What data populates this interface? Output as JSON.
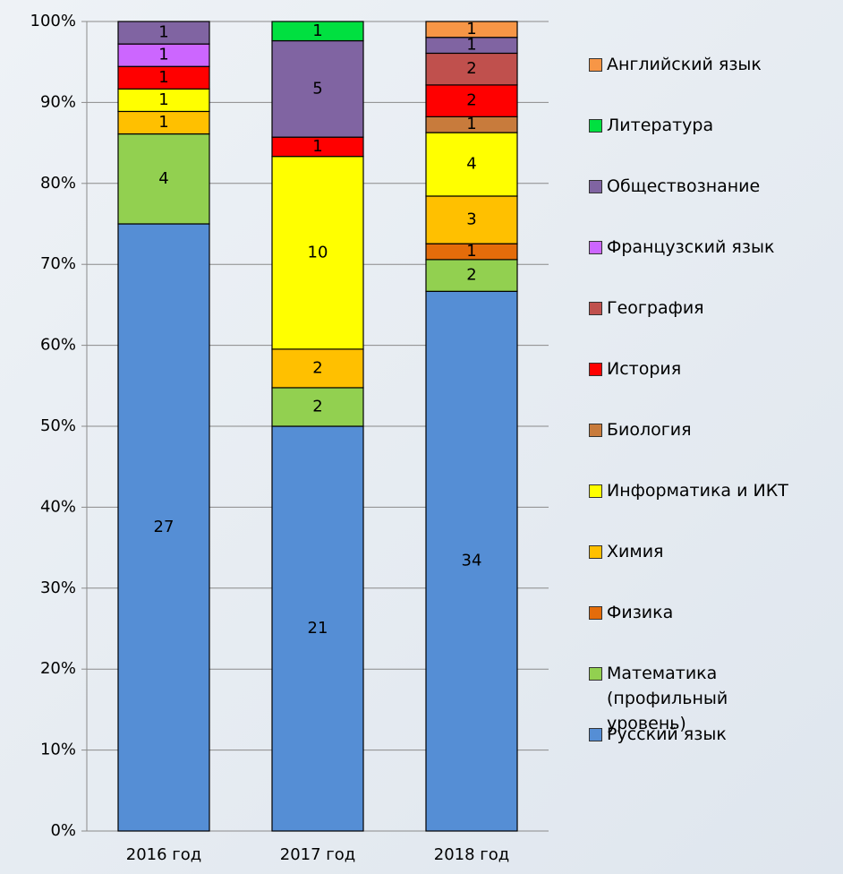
{
  "chart_data": {
    "type": "bar",
    "stacked": "percent",
    "categories": [
      "2016 год",
      "2017 год",
      "2018 год"
    ],
    "series": [
      {
        "name": "Русский язык",
        "color": "#558ed5",
        "values": [
          27,
          21,
          34
        ]
      },
      {
        "name": "Математика (профильный уровень)",
        "color": "#92d050",
        "values": [
          4,
          2,
          2
        ]
      },
      {
        "name": "Физика",
        "color": "#e46c0a",
        "values": [
          null,
          null,
          1
        ]
      },
      {
        "name": "Химия",
        "color": "#ffc000",
        "values": [
          1,
          2,
          3
        ]
      },
      {
        "name": "Информатика и ИКТ",
        "color": "#ffff00",
        "values": [
          1,
          10,
          4
        ]
      },
      {
        "name": "Биология",
        "color": "#c87b3c",
        "values": [
          null,
          null,
          1
        ]
      },
      {
        "name": "История",
        "color": "#ff0000",
        "values": [
          1,
          1,
          2
        ]
      },
      {
        "name": "География",
        "color": "#c0504d",
        "values": [
          null,
          null,
          2
        ]
      },
      {
        "name": "Французский язык",
        "color": "#cc66ff",
        "values": [
          1,
          null,
          null
        ]
      },
      {
        "name": "Обществознание",
        "color": "#8064a2",
        "values": [
          1,
          5,
          1
        ]
      },
      {
        "name": "Литература",
        "color": "#00e040",
        "values": [
          null,
          1,
          null
        ]
      },
      {
        "name": "Английский язык",
        "color": "#f79646",
        "values": [
          null,
          null,
          1
        ]
      }
    ],
    "ylim": [
      0,
      100
    ],
    "yticks": [
      {
        "value": 0,
        "label": "0%"
      },
      {
        "value": 10,
        "label": "10%"
      },
      {
        "value": 20,
        "label": "20%"
      },
      {
        "value": 30,
        "label": "30%"
      },
      {
        "value": 40,
        "label": "40%"
      },
      {
        "value": 50,
        "label": "50%"
      },
      {
        "value": 60,
        "label": "60%"
      },
      {
        "value": 70,
        "label": "70%"
      },
      {
        "value": 80,
        "label": "80%"
      },
      {
        "value": 90,
        "label": "90%"
      },
      {
        "value": 100,
        "label": "100%"
      }
    ],
    "grid": true,
    "legend": "right"
  }
}
